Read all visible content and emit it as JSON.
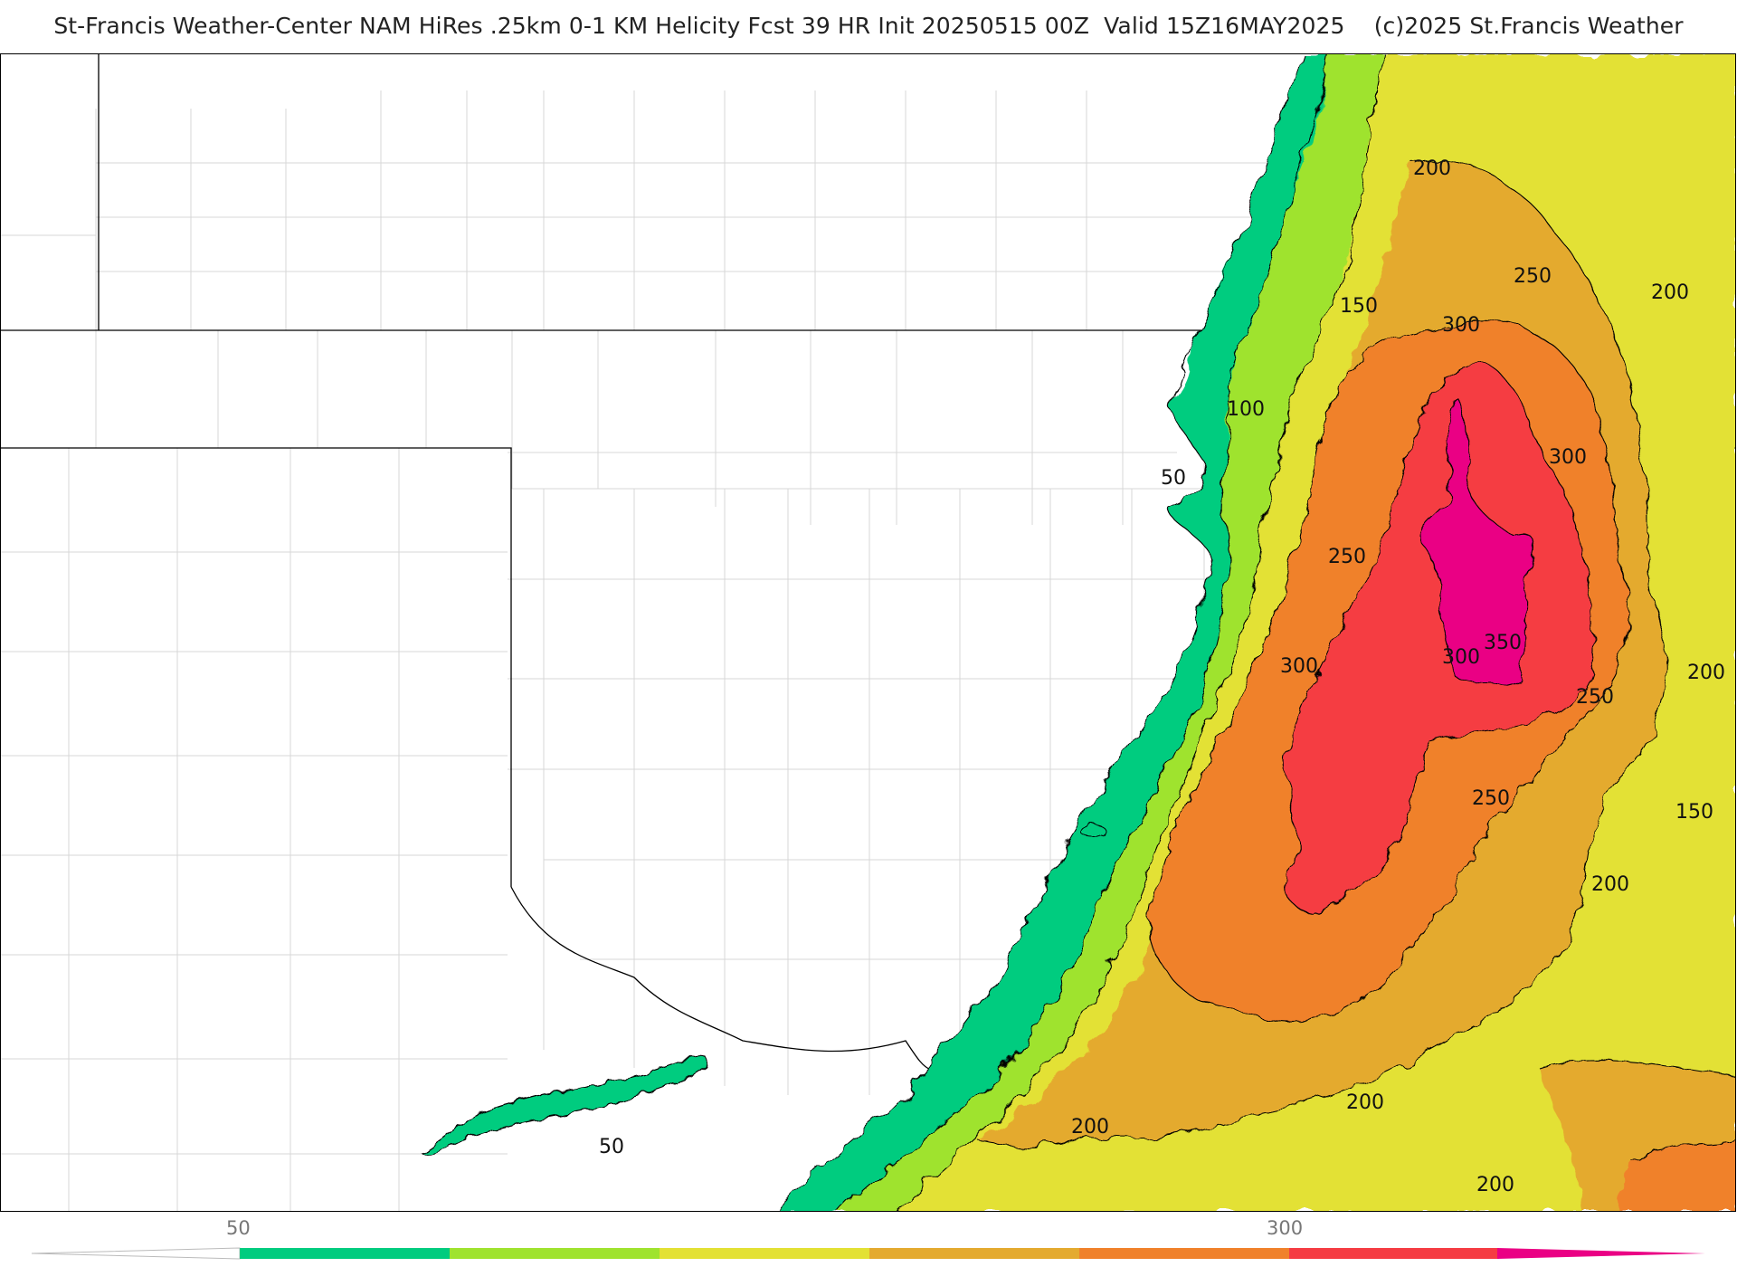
{
  "header": {
    "title": "St-Francis Weather-Center NAM HiRes .25km 0-1 KM Helicity Fcst 39 HR Init 20250515 00Z  Valid 15Z16MAY2025    (c)2025 St.Francis Weather"
  },
  "map": {
    "field": "0-1 KM Helicity",
    "colors": {
      "c50": "#00cc7f",
      "c100": "#9fe32e",
      "c150": "#e3e134",
      "c200": "#e4aa2f",
      "c250": "#f0812b",
      "c300": "#f53c43",
      "c350": "#ea0084"
    },
    "contour_labels": [
      "200",
      "250",
      "200",
      "150",
      "300",
      "100",
      "300",
      "50",
      "250",
      "350",
      "300",
      "300",
      "200",
      "250",
      "250",
      "150",
      "200",
      "200",
      "200",
      "200",
      "50"
    ]
  },
  "colorbar": {
    "tick_labels": [
      "50",
      "300"
    ],
    "colors": [
      "#00cc7f",
      "#9fe32e",
      "#e3e134",
      "#e4aa2f",
      "#f0812b",
      "#f53c43",
      "#ea0084"
    ]
  }
}
